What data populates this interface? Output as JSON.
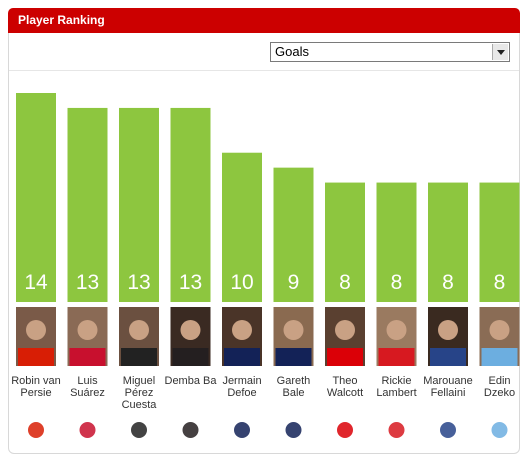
{
  "chart_data": {
    "type": "bar",
    "title": "Player Ranking",
    "selector": "Goals",
    "categories": [
      "Robin van Persie",
      "Luis Suárez",
      "Miguel Pérez Cuesta",
      "Demba Ba",
      "Jermain Defoe",
      "Gareth Bale",
      "Theo Walcott",
      "Rickie Lambert",
      "Marouane Fellaini",
      "Edin Dzeko"
    ],
    "values": [
      14,
      13,
      13,
      13,
      10,
      9,
      8,
      8,
      8,
      8
    ],
    "color": "#8dc63f",
    "ylim": [
      0,
      14
    ]
  }
}
